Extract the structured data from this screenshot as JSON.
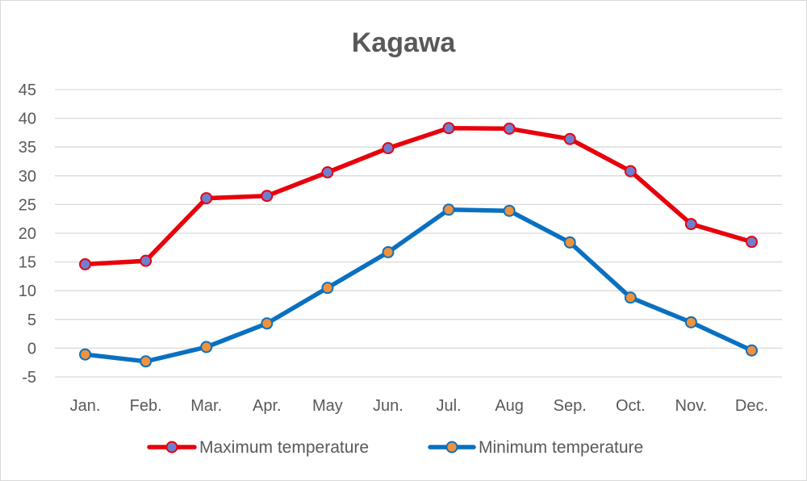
{
  "chart_data": {
    "type": "line",
    "title": "Kagawa",
    "categories": [
      "Jan.",
      "Feb.",
      "Mar.",
      "Apr.",
      "May",
      "Jun.",
      "Jul.",
      "Aug",
      "Sep.",
      "Oct.",
      "Nov.",
      "Dec."
    ],
    "ylim": [
      -5,
      45
    ],
    "yticks": [
      -5,
      0,
      5,
      10,
      15,
      20,
      25,
      30,
      35,
      40,
      45
    ],
    "grid": true,
    "legend_position": "bottom",
    "xlabel": "",
    "ylabel": "",
    "series": [
      {
        "name": "Maximum temperature",
        "line_color": "#e8000b",
        "marker_color": "#6f7fd0",
        "values": [
          14.6,
          15.2,
          26.1,
          26.5,
          30.6,
          34.8,
          38.3,
          38.2,
          36.4,
          30.8,
          21.6,
          18.5
        ]
      },
      {
        "name": "Minimum temperature",
        "line_color": "#0a70c0",
        "marker_color": "#f0913c",
        "values": [
          -1.1,
          -2.3,
          0.2,
          4.3,
          10.5,
          16.7,
          24.1,
          23.9,
          18.4,
          8.8,
          4.5,
          -0.4
        ]
      }
    ]
  }
}
